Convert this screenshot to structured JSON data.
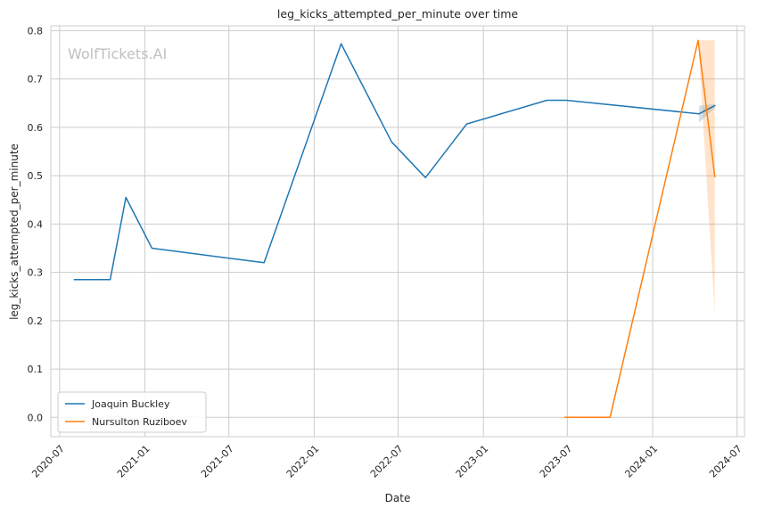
{
  "chart_data": {
    "type": "line",
    "title": "leg_kicks_attempted_per_minute over time",
    "xlabel": "Date",
    "ylabel": "leg_kicks_attempted_per_minute",
    "watermark": "WolfTickets.AI",
    "xlim": [
      "2020-06-12",
      "2024-07-17"
    ],
    "ylim": [
      -0.04,
      0.81
    ],
    "x_ticks": [
      "2020-07",
      "2021-01",
      "2021-07",
      "2022-01",
      "2022-07",
      "2023-01",
      "2023-07",
      "2024-01",
      "2024-07"
    ],
    "y_ticks": [
      "0.0",
      "0.1",
      "0.2",
      "0.3",
      "0.4",
      "0.5",
      "0.6",
      "0.7",
      "0.8"
    ],
    "grid": true,
    "legend_position": "bottom-left",
    "series": [
      {
        "name": "Joaquin Buckley",
        "color": "#1f77b4",
        "points": [
          {
            "x": "2020-08-02",
            "y": 0.285
          },
          {
            "x": "2020-10-18",
            "y": 0.285
          },
          {
            "x": "2020-11-21",
            "y": 0.455
          },
          {
            "x": "2021-01-16",
            "y": 0.35
          },
          {
            "x": "2021-09-15",
            "y": 0.32
          },
          {
            "x": "2022-02-28",
            "y": 0.773
          },
          {
            "x": "2022-06-17",
            "y": 0.57
          },
          {
            "x": "2022-08-29",
            "y": 0.496
          },
          {
            "x": "2022-11-26",
            "y": 0.607
          },
          {
            "x": "2023-05-18",
            "y": 0.656
          },
          {
            "x": "2023-06-28",
            "y": 0.656
          },
          {
            "x": "2024-04-10",
            "y": 0.628
          },
          {
            "x": "2024-05-14",
            "y": 0.645
          }
        ],
        "band": [
          {
            "x": "2024-04-10",
            "low": 0.61,
            "high": 0.645
          },
          {
            "x": "2024-05-14",
            "low": 0.64,
            "high": 0.648
          }
        ]
      },
      {
        "name": "Nursulton Ruziboev",
        "color": "#ff7f0e",
        "points": [
          {
            "x": "2023-06-26",
            "y": 0.0
          },
          {
            "x": "2023-10-01",
            "y": 0.0
          },
          {
            "x": "2024-04-08",
            "y": 0.78
          },
          {
            "x": "2024-05-14",
            "y": 0.498
          }
        ],
        "band": [
          {
            "x": "2024-04-08",
            "low": 0.78,
            "high": 0.78
          },
          {
            "x": "2024-05-14",
            "low": 0.215,
            "high": 0.78
          }
        ]
      }
    ]
  }
}
